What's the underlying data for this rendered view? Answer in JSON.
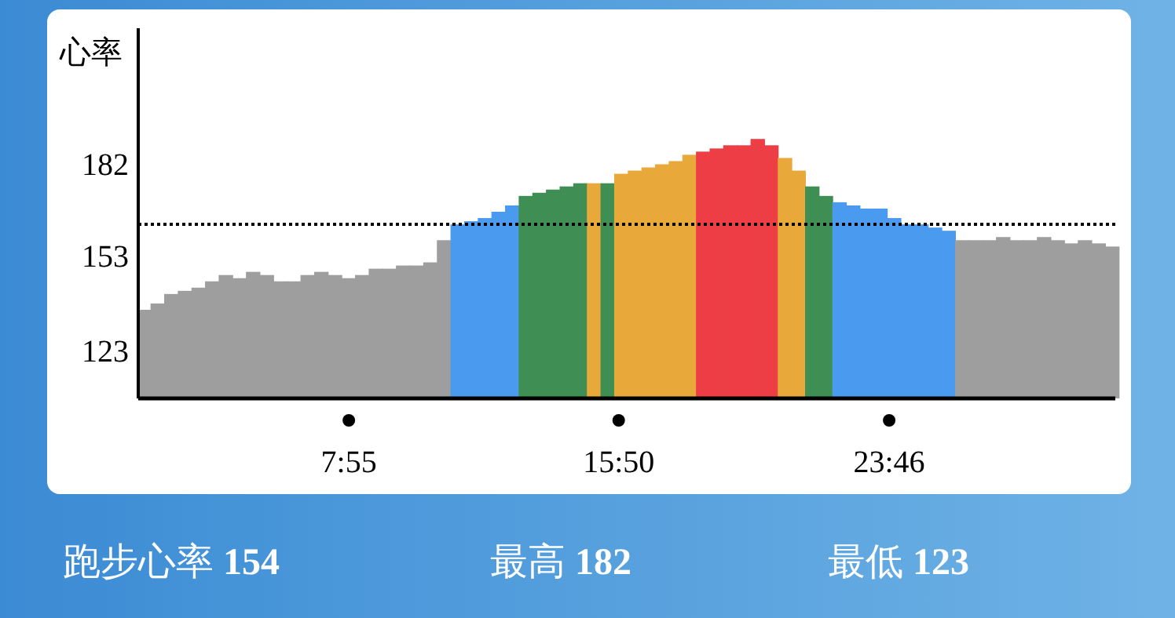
{
  "chart_data": {
    "type": "bar",
    "ylabel": "心率",
    "x": [
      1.9,
      2.3,
      2.7,
      3.1,
      3.5,
      3.9,
      4.3,
      4.7,
      5.1,
      5.5,
      5.9,
      6.3,
      6.7,
      7.1,
      7.5,
      7.9,
      8.3,
      8.7,
      9.1,
      9.5,
      9.9,
      10.3,
      10.7,
      11.1,
      11.5,
      11.9,
      12.3,
      12.7,
      13.1,
      13.5,
      13.9,
      14.3,
      14.7,
      15.1,
      15.5,
      15.9,
      16.3,
      16.7,
      17.1,
      17.5,
      17.9,
      18.3,
      18.7,
      19.1,
      19.5,
      19.9,
      20.3,
      20.7,
      21.1,
      21.5,
      21.9,
      22.3,
      22.7,
      23.1,
      23.5,
      23.9,
      24.3,
      24.7,
      25.1,
      25.5,
      25.9,
      26.3,
      26.7,
      27.1,
      27.5,
      27.9,
      28.3,
      28.7,
      29.1,
      29.5,
      29.9,
      30.3
    ],
    "values": [
      136,
      138,
      141,
      142,
      143,
      145,
      147,
      146,
      148,
      147,
      145,
      145,
      147,
      148,
      147,
      146,
      147,
      149,
      149,
      150,
      150,
      151,
      158,
      163,
      164,
      165,
      167,
      169,
      172,
      173,
      174,
      175,
      176,
      176,
      176,
      179,
      180,
      181,
      182,
      183,
      185,
      186,
      187,
      188,
      188,
      190,
      188,
      184,
      180,
      175,
      172,
      170,
      169,
      168,
      168,
      165,
      163,
      163,
      162,
      161,
      158,
      158,
      158,
      159,
      158,
      158,
      159,
      158,
      157,
      158,
      157,
      156
    ],
    "colors": [
      "#9e9e9e",
      "#9e9e9e",
      "#9e9e9e",
      "#9e9e9e",
      "#9e9e9e",
      "#9e9e9e",
      "#9e9e9e",
      "#9e9e9e",
      "#9e9e9e",
      "#9e9e9e",
      "#9e9e9e",
      "#9e9e9e",
      "#9e9e9e",
      "#9e9e9e",
      "#9e9e9e",
      "#9e9e9e",
      "#9e9e9e",
      "#9e9e9e",
      "#9e9e9e",
      "#9e9e9e",
      "#9e9e9e",
      "#9e9e9e",
      "#9e9e9e",
      "#4a9af0",
      "#4a9af0",
      "#4a9af0",
      "#4a9af0",
      "#4a9af0",
      "#3f8f55",
      "#3f8f55",
      "#3f8f55",
      "#3f8f55",
      "#3f8f55",
      "#e8a83a",
      "#3f8f55",
      "#e8a83a",
      "#e8a83a",
      "#e8a83a",
      "#e8a83a",
      "#e8a83a",
      "#e8a83a",
      "#ee3e45",
      "#ee3e45",
      "#ee3e45",
      "#ee3e45",
      "#ee3e45",
      "#ee3e45",
      "#e8a83a",
      "#e8a83a",
      "#3f8f55",
      "#3f8f55",
      "#4a9af0",
      "#4a9af0",
      "#4a9af0",
      "#4a9af0",
      "#4a9af0",
      "#4a9af0",
      "#4a9af0",
      "#4a9af0",
      "#4a9af0",
      "#9e9e9e",
      "#9e9e9e",
      "#9e9e9e",
      "#9e9e9e",
      "#9e9e9e",
      "#9e9e9e",
      "#9e9e9e",
      "#9e9e9e",
      "#9e9e9e",
      "#9e9e9e",
      "#9e9e9e",
      "#9e9e9e"
    ],
    "xlim": [
      1.74,
      30.4
    ],
    "xticks": [
      {
        "value": 7.917,
        "label": "7:55"
      },
      {
        "value": 15.833,
        "label": "15:50"
      },
      {
        "value": 23.767,
        "label": "23:46"
      }
    ],
    "ylim": [
      108,
      225
    ],
    "yticks": [
      123,
      153,
      182
    ],
    "ref_lines": [
      {
        "axis": "y",
        "value": 163,
        "line_style": "dotted",
        "color": "#000000"
      }
    ],
    "annotations": [
      "跑步心率 154",
      "最高 182",
      "最低 123"
    ]
  }
}
